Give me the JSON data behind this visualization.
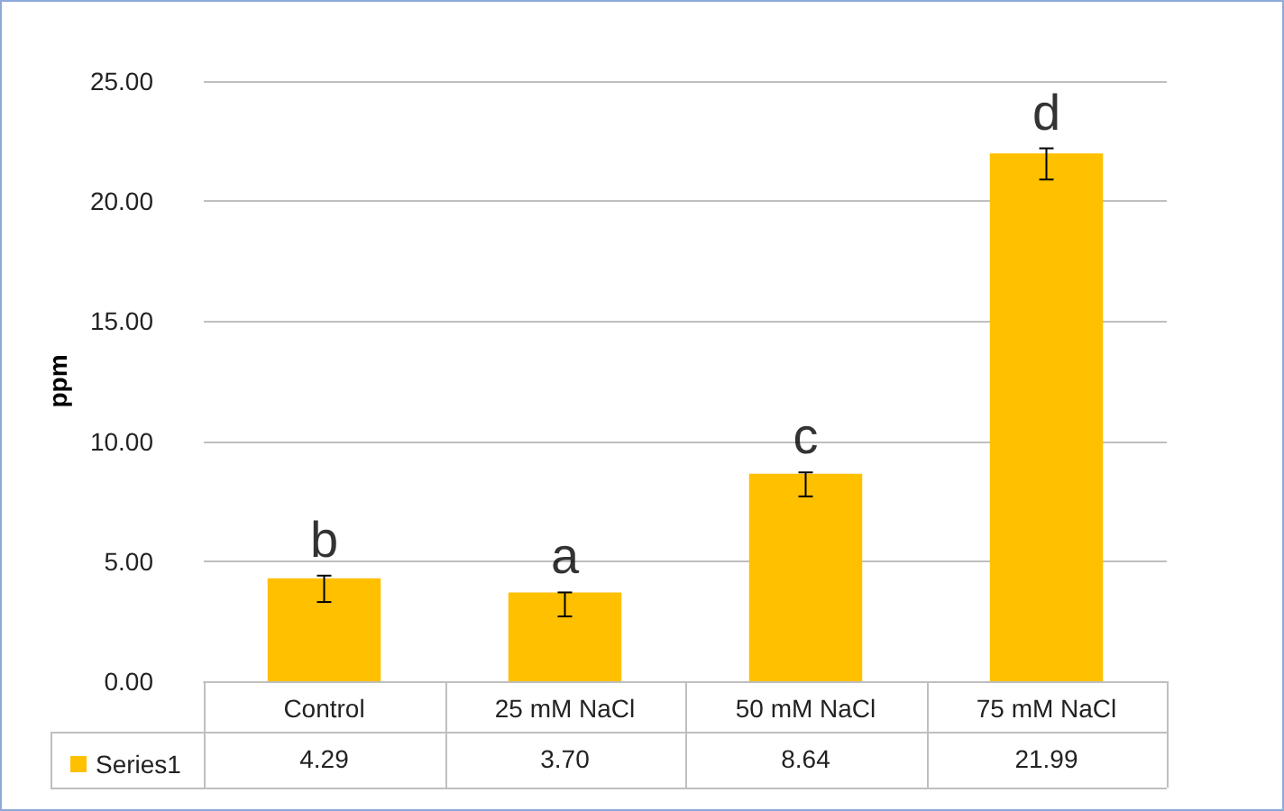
{
  "chart_data": {
    "type": "bar",
    "ylabel": "ppm",
    "categories": [
      "Control",
      "25 mM NaCl",
      "50 mM NaCl",
      "75 mM NaCl"
    ],
    "series": [
      {
        "name": "Series1",
        "color": "#ffc000",
        "values": [
          4.29,
          3.7,
          8.64,
          21.99
        ],
        "errors": [
          [
            3.3,
            4.4
          ],
          [
            2.7,
            3.7
          ],
          [
            7.7,
            8.7
          ],
          [
            20.9,
            22.2
          ]
        ],
        "value_labels": [
          "4.29",
          "3.70",
          "8.64",
          "21.99"
        ]
      }
    ],
    "ylim": [
      0,
      25
    ],
    "yticks": [
      {
        "value": 0,
        "label": "0.00"
      },
      {
        "value": 5,
        "label": "5.00"
      },
      {
        "value": 10,
        "label": "10.00"
      },
      {
        "value": 15,
        "label": "15.00"
      },
      {
        "value": 20,
        "label": "20.00"
      },
      {
        "value": 25,
        "label": "25.00"
      }
    ],
    "grid": "y",
    "legend": "bottom left",
    "annotations": [
      "b",
      "a",
      "c",
      "d"
    ]
  }
}
